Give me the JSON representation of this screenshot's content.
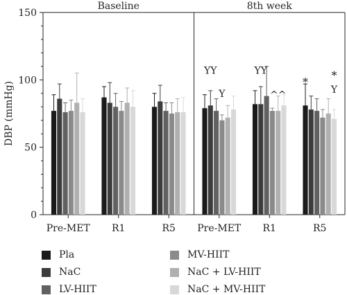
{
  "chart_data": {
    "type": "bar",
    "title": "",
    "xlabel": "",
    "ylabel": "DBP (mmHg)",
    "ylim": [
      0,
      150
    ],
    "yticks": [
      "0",
      "50",
      "100",
      "150"
    ],
    "grid": false,
    "legend_position": "bottom",
    "panels": [
      "Baseline",
      "8th week"
    ],
    "categories": [
      "Pre-MET",
      "R1",
      "R5",
      "Pre-MET",
      "R1",
      "R5"
    ],
    "series": [
      {
        "name": "Pla",
        "color": "#1a1a1a",
        "values": [
          77,
          87,
          80,
          79,
          82,
          81
        ],
        "errors": [
          12,
          8,
          10,
          10,
          10,
          16
        ]
      },
      {
        "name": "NaC",
        "color": "#3c3c3c",
        "values": [
          86,
          83,
          84,
          81,
          82,
          78
        ],
        "errors": [
          11,
          15,
          12,
          11,
          13,
          10
        ]
      },
      {
        "name": "LV-HIIT",
        "color": "#616161",
        "values": [
          76,
          80,
          77,
          77,
          88,
          77
        ],
        "errors": [
          7,
          10,
          6,
          9,
          22,
          9
        ]
      },
      {
        "name": "MV-HIIT",
        "color": "#8a8a8a",
        "values": [
          77,
          77,
          75,
          70,
          77,
          72
        ],
        "errors": [
          8,
          7,
          8,
          4,
          2,
          6
        ]
      },
      {
        "name": "NaC + LV-HIIT",
        "color": "#b0b0b0",
        "values": [
          83,
          83,
          76,
          72,
          77,
          75
        ],
        "errors": [
          22,
          11,
          10,
          9,
          11,
          11
        ]
      },
      {
        "name": "NaC + MV-HIIT",
        "color": "#d8d8d8",
        "values": [
          76,
          80,
          76,
          78,
          81,
          71
        ],
        "errors": [
          10,
          12,
          11,
          10,
          8,
          7
        ]
      }
    ],
    "annotations": [
      {
        "text": "YY",
        "category": 3,
        "series": 1,
        "y": 107
      },
      {
        "text": "Y",
        "category": 3,
        "series": 3,
        "y": 90
      },
      {
        "text": "YY",
        "category": 4,
        "series": 1,
        "y": 107
      },
      {
        "text": "^^",
        "category": 4,
        "series": 4,
        "y": 89
      },
      {
        "text": "*",
        "category": 5,
        "series": 0,
        "y": 98
      },
      {
        "text": "*",
        "category": 5,
        "series": 5,
        "y": 103
      },
      {
        "text": "Y",
        "category": 5,
        "series": 5,
        "y": 93
      }
    ]
  }
}
